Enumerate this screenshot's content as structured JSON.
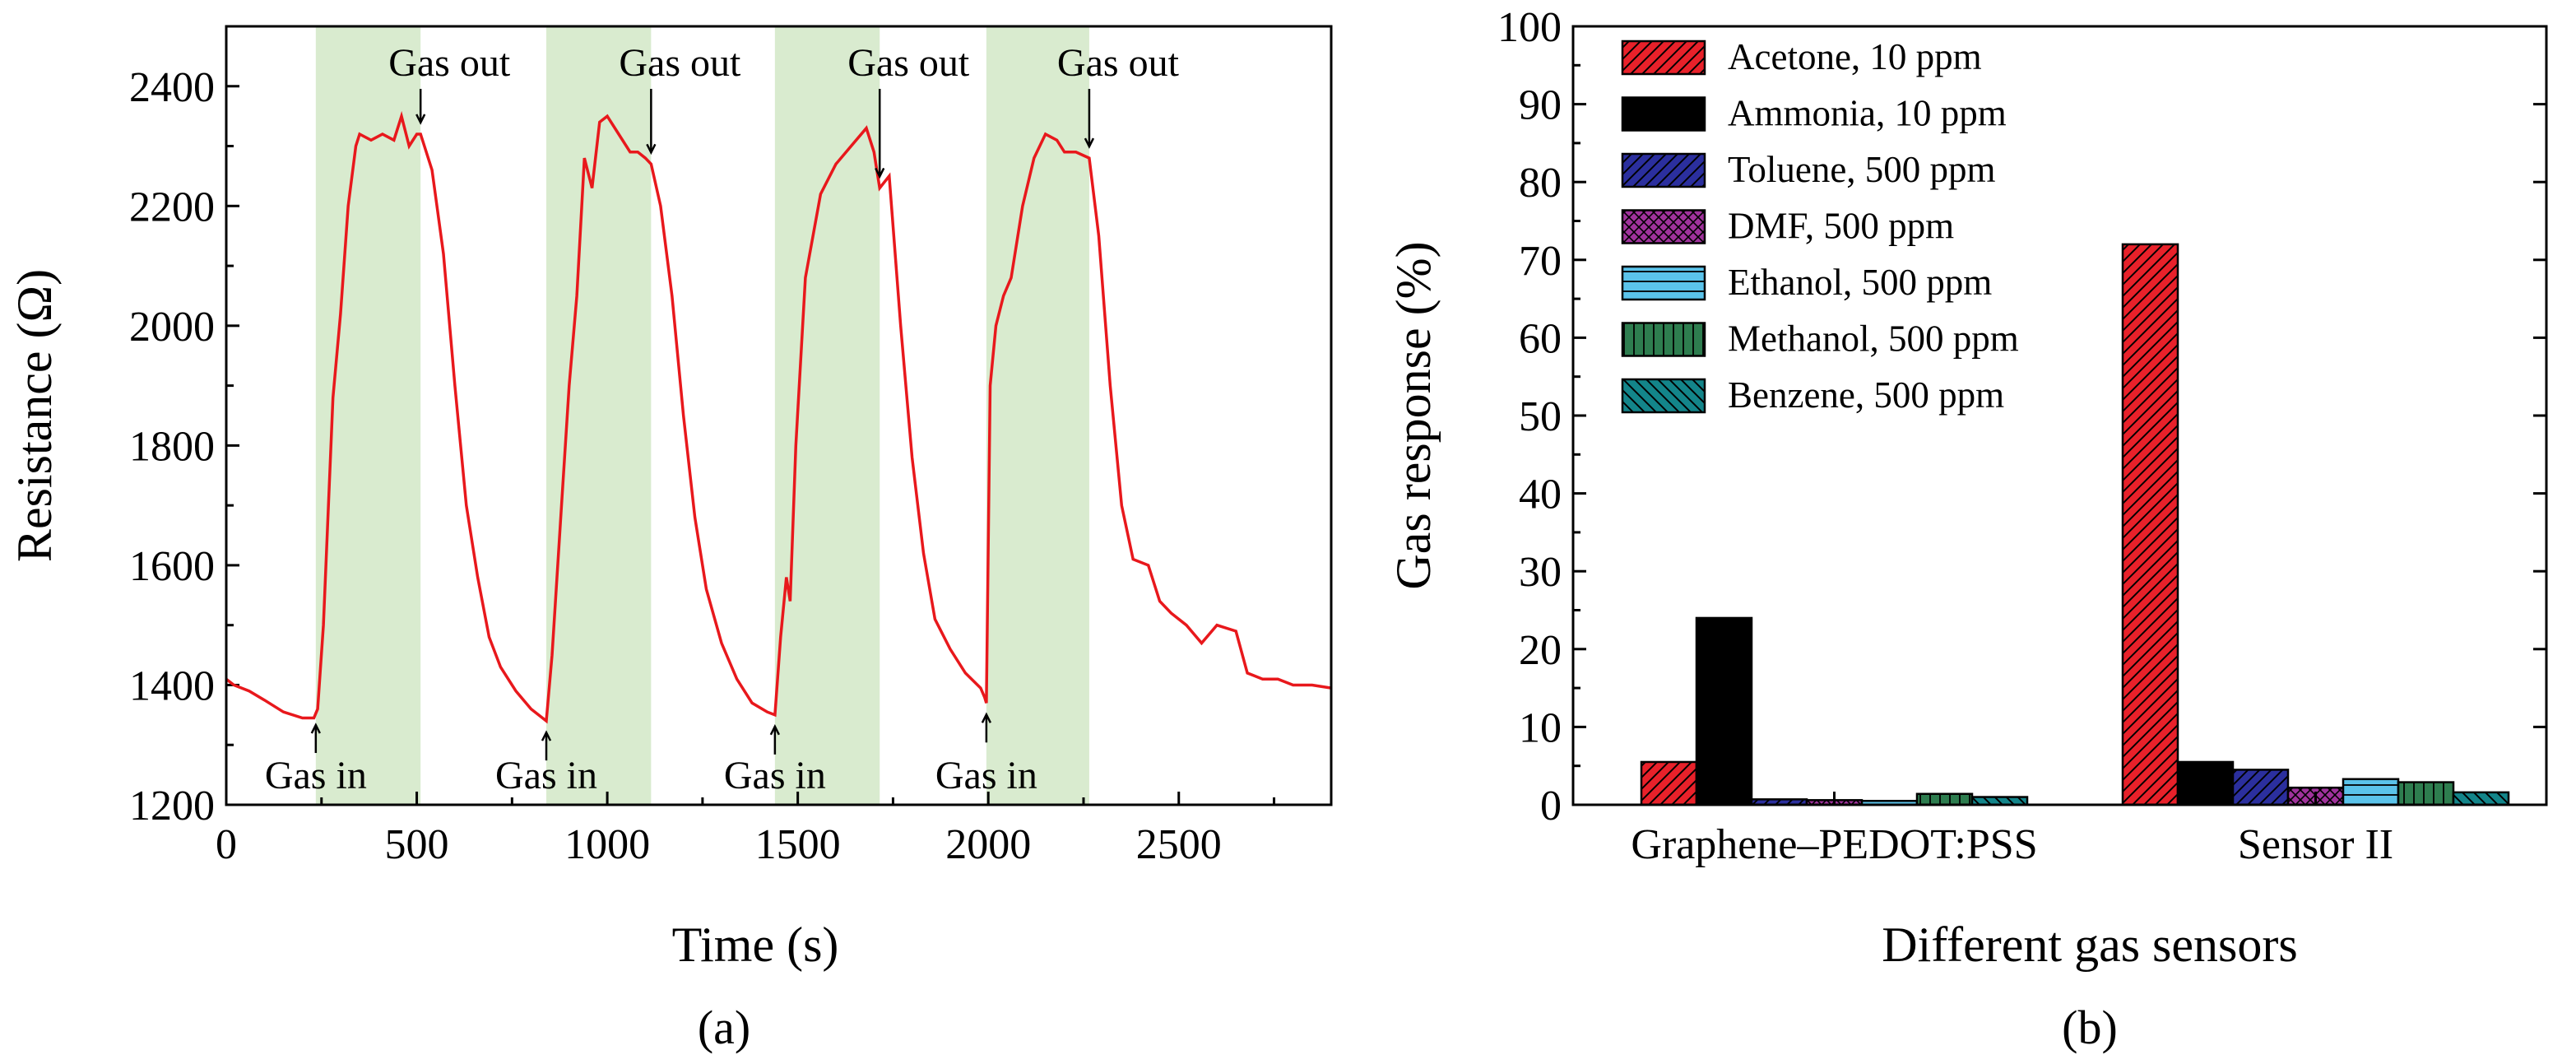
{
  "chart_data": [
    {
      "type": "line",
      "panel_label": "(a)",
      "xlabel": "Time (s)",
      "ylabel": "Resistance (Ω)",
      "xlim": [
        0,
        2900
      ],
      "ylim": [
        1200,
        2500
      ],
      "xticks": [
        0,
        500,
        1000,
        1500,
        2000,
        2500
      ],
      "yticks": [
        1200,
        1400,
        1600,
        1800,
        2000,
        2200,
        2400
      ],
      "line_color": "#e8181c",
      "shade_color": "#d9ebcf",
      "shaded_regions": [
        [
          235,
          510
        ],
        [
          840,
          1115
        ],
        [
          1440,
          1715
        ],
        [
          1995,
          2265
        ]
      ],
      "annotations": {
        "gas_in": {
          "label": "Gas in",
          "times": [
            235,
            840,
            1440,
            1995
          ]
        },
        "gas_out": {
          "label": "Gas out",
          "times": [
            510,
            1115,
            1715,
            2265
          ]
        }
      },
      "series": [
        {
          "name": "Resistance",
          "x": [
            0,
            20,
            60,
            100,
            150,
            200,
            230,
            240,
            255,
            280,
            300,
            320,
            340,
            350,
            380,
            410,
            440,
            460,
            480,
            500,
            510,
            540,
            570,
            600,
            630,
            660,
            690,
            720,
            760,
            800,
            830,
            840,
            855,
            880,
            900,
            920,
            940,
            960,
            980,
            1000,
            1030,
            1060,
            1080,
            1100,
            1115,
            1140,
            1170,
            1200,
            1230,
            1260,
            1300,
            1340,
            1380,
            1420,
            1440,
            1455,
            1470,
            1480,
            1495,
            1520,
            1560,
            1600,
            1640,
            1680,
            1700,
            1715,
            1740,
            1770,
            1800,
            1830,
            1860,
            1900,
            1940,
            1980,
            1990,
            1995,
            2005,
            2020,
            2040,
            2060,
            2090,
            2120,
            2150,
            2180,
            2200,
            2230,
            2265,
            2290,
            2320,
            2350,
            2380,
            2420,
            2450,
            2480,
            2520,
            2560,
            2600,
            2650,
            2680,
            2720,
            2760,
            2800,
            2850,
            2900
          ],
          "y": [
            1410,
            1400,
            1390,
            1375,
            1355,
            1345,
            1345,
            1360,
            1500,
            1880,
            2020,
            2200,
            2300,
            2320,
            2310,
            2320,
            2310,
            2350,
            2300,
            2320,
            2320,
            2260,
            2120,
            1900,
            1700,
            1580,
            1480,
            1430,
            1390,
            1360,
            1345,
            1340,
            1450,
            1700,
            1900,
            2050,
            2280,
            2230,
            2340,
            2350,
            2320,
            2290,
            2290,
            2280,
            2270,
            2200,
            2050,
            1850,
            1680,
            1560,
            1470,
            1410,
            1370,
            1355,
            1350,
            1480,
            1580,
            1540,
            1800,
            2080,
            2220,
            2270,
            2300,
            2330,
            2290,
            2230,
            2250,
            2000,
            1780,
            1620,
            1510,
            1460,
            1420,
            1395,
            1380,
            1370,
            1900,
            2000,
            2050,
            2080,
            2200,
            2280,
            2320,
            2310,
            2290,
            2290,
            2280,
            2150,
            1900,
            1700,
            1610,
            1600,
            1540,
            1520,
            1500,
            1470,
            1500,
            1490,
            1420,
            1410,
            1410,
            1400,
            1400,
            1395
          ]
        }
      ]
    },
    {
      "type": "bar",
      "panel_label": "(b)",
      "xlabel": "Different gas sensors",
      "ylabel": "Gas response (%)",
      "ylim": [
        0,
        100
      ],
      "yticks": [
        0,
        10,
        20,
        30,
        40,
        50,
        60,
        70,
        80,
        90,
        100
      ],
      "categories": [
        "Graphene–PEDOT:PSS",
        "Sensor II"
      ],
      "legend_position": "top-left",
      "series": [
        {
          "name": "Acetone, 10 ppm",
          "color": "#e8212a",
          "pattern": "diag-fwd",
          "values": [
            5.5,
            72
          ]
        },
        {
          "name": "Ammonia, 10 ppm",
          "color": "#000000",
          "pattern": "solid",
          "values": [
            24,
            5.5
          ]
        },
        {
          "name": "Toluene, 500 ppm",
          "color": "#2b2f9e",
          "pattern": "diag-fwd",
          "values": [
            0.7,
            4.5
          ]
        },
        {
          "name": "DMF, 500 ppm",
          "color": "#a0329c",
          "pattern": "cross",
          "values": [
            0.6,
            2.2
          ]
        },
        {
          "name": "Ethanol, 500 ppm",
          "color": "#5bc3ea",
          "pattern": "horiz",
          "values": [
            0.5,
            3.3
          ]
        },
        {
          "name": "Methanol, 500 ppm",
          "color": "#2e7d4f",
          "pattern": "vert",
          "values": [
            1.4,
            2.9
          ]
        },
        {
          "name": "Benzene, 500 ppm",
          "color": "#13858a",
          "pattern": "diag-back",
          "values": [
            1.0,
            1.6
          ]
        }
      ]
    }
  ]
}
